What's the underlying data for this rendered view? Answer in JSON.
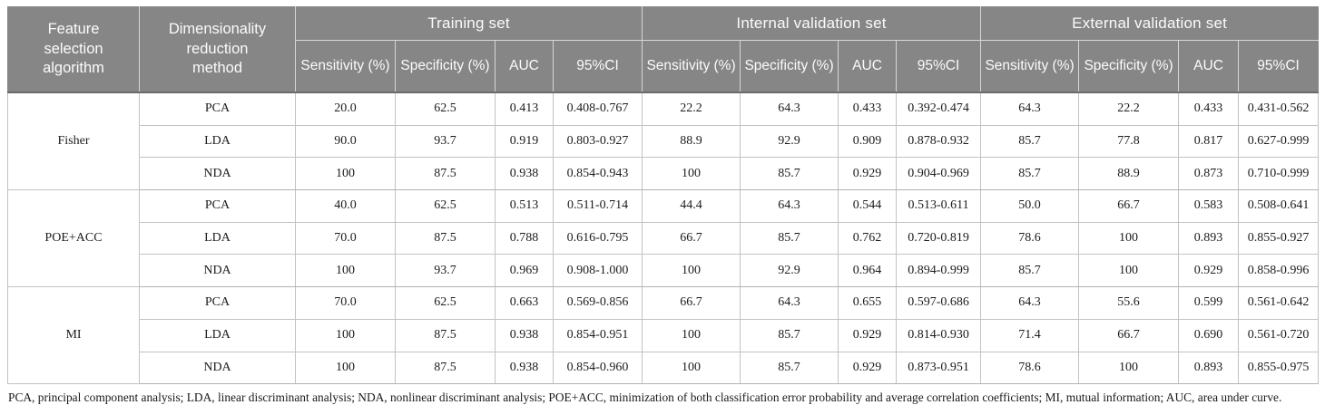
{
  "table": {
    "header": {
      "col1": "Feature selection algorithm",
      "col2": "Dimensionality reduction method",
      "groups": [
        {
          "label": "Training set"
        },
        {
          "label": "Internal validation set"
        },
        {
          "label": "External validation set"
        }
      ],
      "sub_columns": [
        "Sensitivity (%)",
        "Specificity (%)",
        "AUC",
        "95%CI"
      ]
    },
    "body": {
      "groups": [
        {
          "algorithm": "Fisher",
          "rows": [
            {
              "method": "PCA",
              "values": [
                "20.0",
                "62.5",
                "0.413",
                "0.408-0.767",
                "22.2",
                "64.3",
                "0.433",
                "0.392-0.474",
                "64.3",
                "22.2",
                "0.433",
                "0.431-0.562"
              ]
            },
            {
              "method": "LDA",
              "values": [
                "90.0",
                "93.7",
                "0.919",
                "0.803-0.927",
                "88.9",
                "92.9",
                "0.909",
                "0.878-0.932",
                "85.7",
                "77.8",
                "0.817",
                "0.627-0.999"
              ]
            },
            {
              "method": "NDA",
              "values": [
                "100",
                "87.5",
                "0.938",
                "0.854-0.943",
                "100",
                "85.7",
                "0.929",
                "0.904-0.969",
                "85.7",
                "88.9",
                "0.873",
                "0.710-0.999"
              ]
            }
          ]
        },
        {
          "algorithm": "POE+ACC",
          "rows": [
            {
              "method": "PCA",
              "values": [
                "40.0",
                "62.5",
                "0.513",
                "0.511-0.714",
                "44.4",
                "64.3",
                "0.544",
                "0.513-0.611",
                "50.0",
                "66.7",
                "0.583",
                "0.508-0.641"
              ]
            },
            {
              "method": "LDA",
              "values": [
                "70.0",
                "87.5",
                "0.788",
                "0.616-0.795",
                "66.7",
                "85.7",
                "0.762",
                "0.720-0.819",
                "78.6",
                "100",
                "0.893",
                "0.855-0.927"
              ]
            },
            {
              "method": "NDA",
              "values": [
                "100",
                "93.7",
                "0.969",
                "0.908-1.000",
                "100",
                "92.9",
                "0.964",
                "0.894-0.999",
                "85.7",
                "100",
                "0.929",
                "0.858-0.996"
              ]
            }
          ]
        },
        {
          "algorithm": "MI",
          "rows": [
            {
              "method": "PCA",
              "values": [
                "70.0",
                "62.5",
                "0.663",
                "0.569-0.856",
                "66.7",
                "64.3",
                "0.655",
                "0.597-0.686",
                "64.3",
                "55.6",
                "0.599",
                "0.561-0.642"
              ]
            },
            {
              "method": "LDA",
              "values": [
                "100",
                "87.5",
                "0.938",
                "0.854-0.951",
                "100",
                "85.7",
                "0.929",
                "0.814-0.930",
                "71.4",
                "66.7",
                "0.690",
                "0.561-0.720"
              ]
            },
            {
              "method": "NDA",
              "values": [
                "100",
                "87.5",
                "0.938",
                "0.854-0.960",
                "100",
                "85.7",
                "0.929",
                "0.873-0.951",
                "78.6",
                "100",
                "0.893",
                "0.855-0.975"
              ]
            }
          ]
        }
      ]
    },
    "footnote": "PCA, principal component analysis; LDA, linear discriminant analysis; NDA, nonlinear discriminant analysis; POE+ACC, minimization of both classification error probability and average correlation coefficients; MI, mutual information; AUC, area under curve."
  },
  "colors": {
    "header_background": "#868686",
    "header_text": "#fbfbfb",
    "header_bottom_rule": "#6a6a6a",
    "body_border": "#c3c3c3",
    "body_text": "#1c1c1c"
  }
}
